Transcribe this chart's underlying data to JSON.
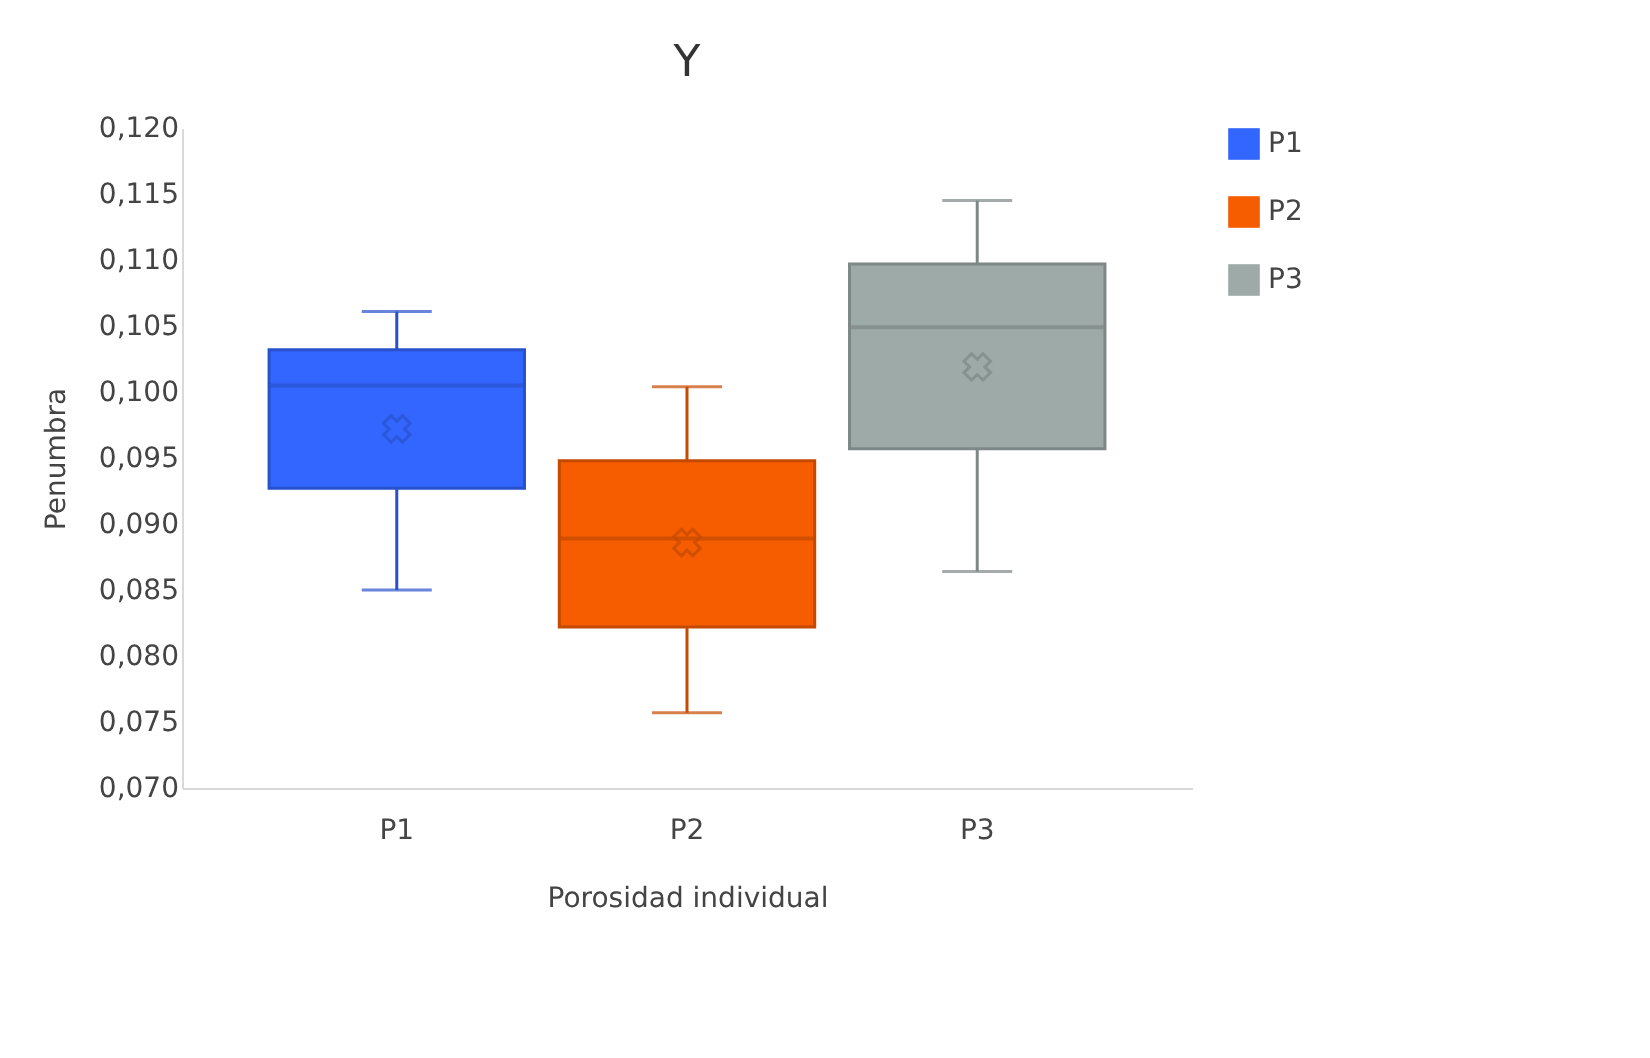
{
  "chart_data": {
    "type": "box",
    "title": "Y",
    "xlabel": "Porosidad individual",
    "ylabel": "Penumbra",
    "categories": [
      "P1",
      "P2",
      "P3"
    ],
    "series": [
      {
        "name": "P1",
        "color": "#3366ff",
        "boxes": [
          {
            "low": 0.085,
            "q1": 0.0927,
            "median": 0.1005,
            "q3": 0.1032,
            "high": 0.1061,
            "mean": 0.0972
          },
          null,
          null
        ]
      },
      {
        "name": "P2",
        "color": "#f55d00",
        "boxes": [
          null,
          {
            "low": 0.0757,
            "q1": 0.0822,
            "median": 0.0889,
            "q3": 0.0948,
            "high": 0.1004,
            "mean": 0.0886
          },
          null
        ]
      },
      {
        "name": "P3",
        "color": "#9eaaa8",
        "boxes": [
          null,
          null,
          {
            "low": 0.0864,
            "q1": 0.0957,
            "median": 0.1049,
            "q3": 0.1097,
            "high": 0.1145,
            "mean": 0.1019
          }
        ]
      }
    ],
    "ylim": [
      0.07,
      0.12
    ],
    "yticks": [
      {
        "value": 0.07,
        "label": "0,070"
      },
      {
        "value": 0.075,
        "label": "0,075"
      },
      {
        "value": 0.08,
        "label": "0,080"
      },
      {
        "value": 0.085,
        "label": "0,085"
      },
      {
        "value": 0.09,
        "label": "0,090"
      },
      {
        "value": 0.095,
        "label": "0,095"
      },
      {
        "value": 0.1,
        "label": "0,100"
      },
      {
        "value": 0.105,
        "label": "0,105"
      },
      {
        "value": 0.11,
        "label": "0,110"
      },
      {
        "value": 0.115,
        "label": "0,115"
      },
      {
        "value": 0.12,
        "label": "0,120"
      }
    ],
    "grid": false,
    "legend": "right",
    "marker": "cross"
  }
}
